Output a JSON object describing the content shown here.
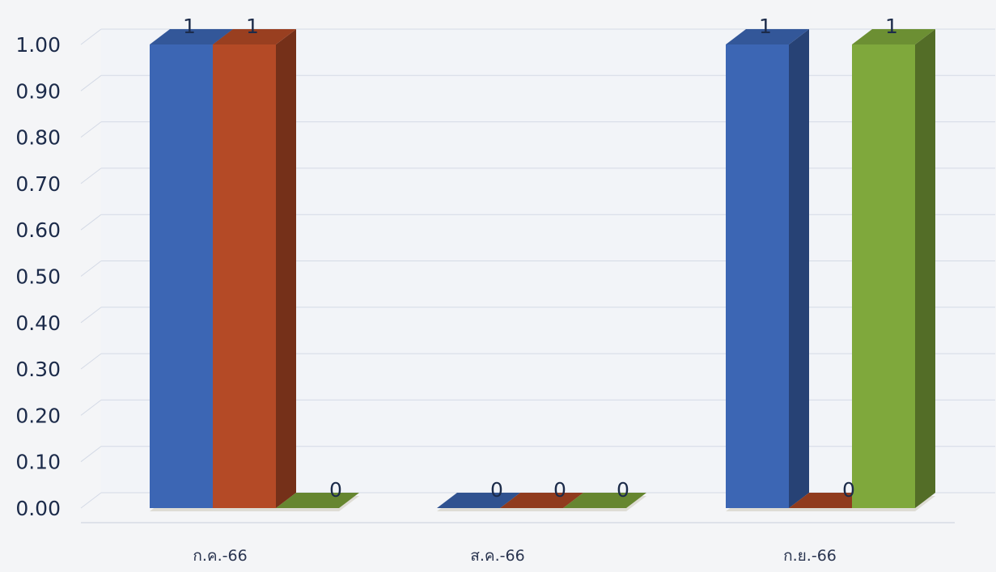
{
  "chart_data": {
    "type": "bar",
    "style": "3d-clustered-column",
    "categories": [
      "ก.ค.-66",
      "ส.ค.-66",
      "ก.ย.-66"
    ],
    "series": [
      {
        "color": "#3c66b4",
        "values": [
          1,
          0,
          1
        ]
      },
      {
        "color": "#b44a26",
        "values": [
          1,
          0,
          0
        ]
      },
      {
        "color": "#7fa83c",
        "values": [
          0,
          0,
          1
        ]
      }
    ],
    "ylim": [
      0,
      1
    ],
    "yticks": [
      "0.00",
      "0.10",
      "0.20",
      "0.30",
      "0.40",
      "0.50",
      "0.60",
      "0.70",
      "0.80",
      "0.90",
      "1.00"
    ],
    "data_labels": [
      [
        "1",
        "1",
        "0"
      ],
      [
        "0",
        "0",
        "0"
      ],
      [
        "1",
        "0",
        "1"
      ]
    ],
    "grid": true,
    "legend": "none"
  }
}
